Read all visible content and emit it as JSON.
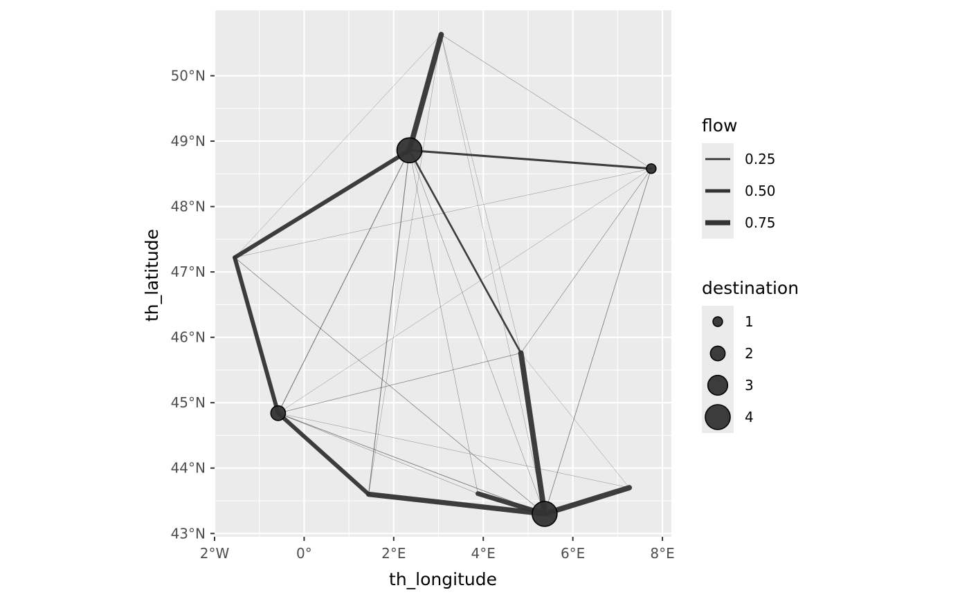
{
  "chart_data": {
    "type": "network-map",
    "xlabel": "th_longitude",
    "ylabel": "th_latitude",
    "xlim": [
      -2.0,
      8.2
    ],
    "ylim": [
      42.95,
      51.0
    ],
    "x_ticks": [
      {
        "value": -2,
        "label": "2°W"
      },
      {
        "value": 0,
        "label": "0°"
      },
      {
        "value": 2,
        "label": "2°E"
      },
      {
        "value": 4,
        "label": "4°E"
      },
      {
        "value": 6,
        "label": "6°E"
      },
      {
        "value": 8,
        "label": "8°E"
      }
    ],
    "y_ticks": [
      {
        "value": 43,
        "label": "43°N"
      },
      {
        "value": 44,
        "label": "44°N"
      },
      {
        "value": 45,
        "label": "45°N"
      },
      {
        "value": 46,
        "label": "46°N"
      },
      {
        "value": 47,
        "label": "47°N"
      },
      {
        "value": 48,
        "label": "48°N"
      },
      {
        "value": 49,
        "label": "49°N"
      },
      {
        "value": 50,
        "label": "50°N"
      }
    ],
    "grid": true,
    "panel_background": "#ebebeb",
    "grid_color": "#ffffff",
    "mark_color": "#333333",
    "nodes": [
      {
        "id": "paris",
        "lon": 2.35,
        "lat": 48.86,
        "destination": 4
      },
      {
        "id": "lille",
        "lon": 3.06,
        "lat": 50.63,
        "destination": 0
      },
      {
        "id": "strasbourg",
        "lon": 7.75,
        "lat": 48.58,
        "destination": 1
      },
      {
        "id": "nantes",
        "lon": -1.55,
        "lat": 47.22,
        "destination": 0
      },
      {
        "id": "bordeaux",
        "lon": -0.58,
        "lat": 44.84,
        "destination": 2
      },
      {
        "id": "toulouse",
        "lon": 1.44,
        "lat": 43.6,
        "destination": 0
      },
      {
        "id": "montpellier",
        "lon": 3.88,
        "lat": 43.61,
        "destination": 0
      },
      {
        "id": "marseille",
        "lon": 5.37,
        "lat": 43.3,
        "destination": 4
      },
      {
        "id": "nice",
        "lon": 7.26,
        "lat": 43.7,
        "destination": 0
      },
      {
        "id": "lyon",
        "lon": 4.84,
        "lat": 45.76,
        "destination": 0
      }
    ],
    "flows": [
      {
        "from": "paris",
        "to": "lille",
        "flow": 0.8
      },
      {
        "from": "nantes",
        "to": "paris",
        "flow": 0.6
      },
      {
        "from": "strasbourg",
        "to": "paris",
        "flow": 0.3
      },
      {
        "from": "paris",
        "to": "lyon",
        "flow": 0.25
      },
      {
        "from": "nantes",
        "to": "bordeaux",
        "flow": 0.6
      },
      {
        "from": "bordeaux",
        "to": "toulouse",
        "flow": 0.6
      },
      {
        "from": "toulouse",
        "to": "marseille",
        "flow": 0.75
      },
      {
        "from": "montpellier",
        "to": "marseille",
        "flow": 0.7
      },
      {
        "from": "nice",
        "to": "marseille",
        "flow": 0.8
      },
      {
        "from": "lyon",
        "to": "marseille",
        "flow": 0.8
      },
      {
        "from": "bordeaux",
        "to": "paris",
        "flow": 0.08
      },
      {
        "from": "toulouse",
        "to": "paris",
        "flow": 0.08
      },
      {
        "from": "strasbourg",
        "to": "marseille",
        "flow": 0.06
      },
      {
        "from": "nantes",
        "to": "marseille",
        "flow": 0.05
      },
      {
        "from": "bordeaux",
        "to": "marseille",
        "flow": 0.06
      },
      {
        "from": "bordeaux",
        "to": "lyon",
        "flow": 0.05
      },
      {
        "from": "strasbourg",
        "to": "lyon",
        "flow": 0.04
      },
      {
        "from": "lille",
        "to": "strasbourg",
        "flow": 0.03
      },
      {
        "from": "nantes",
        "to": "strasbourg",
        "flow": 0.02
      },
      {
        "from": "bordeaux",
        "to": "strasbourg",
        "flow": 0.02
      },
      {
        "from": "paris",
        "to": "marseille",
        "flow": 0.03
      },
      {
        "from": "paris",
        "to": "montpellier",
        "flow": 0.03
      },
      {
        "from": "lille",
        "to": "lyon",
        "flow": 0.02
      },
      {
        "from": "lille",
        "to": "marseille",
        "flow": 0.02
      },
      {
        "from": "bordeaux",
        "to": "montpellier",
        "flow": 0.03
      },
      {
        "from": "bordeaux",
        "to": "nice",
        "flow": 0.02
      },
      {
        "from": "toulouse",
        "to": "lille",
        "flow": 0.02
      },
      {
        "from": "nantes",
        "to": "lille",
        "flow": 0.02
      },
      {
        "from": "lyon",
        "to": "nice",
        "flow": 0.02
      }
    ],
    "legends": [
      {
        "title": "flow",
        "kind": "line-width",
        "entries": [
          {
            "label": "0.25",
            "value": 0.25
          },
          {
            "label": "0.50",
            "value": 0.5
          },
          {
            "label": "0.75",
            "value": 0.75
          }
        ]
      },
      {
        "title": "destination",
        "kind": "point-size",
        "entries": [
          {
            "label": "1",
            "value": 1
          },
          {
            "label": "2",
            "value": 2
          },
          {
            "label": "3",
            "value": 3
          },
          {
            "label": "4",
            "value": 4
          }
        ]
      }
    ],
    "legend_position": "right"
  }
}
